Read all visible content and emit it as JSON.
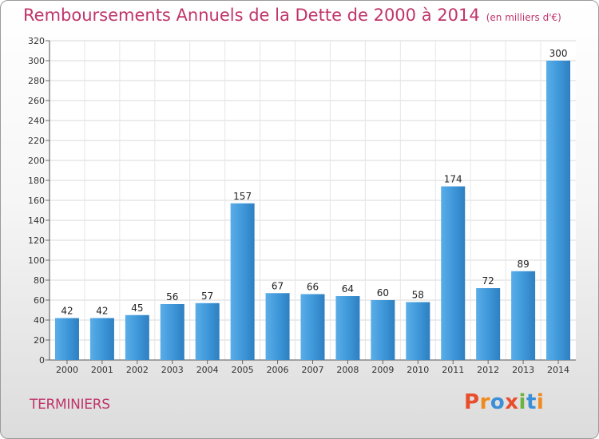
{
  "chart_data": {
    "type": "bar",
    "title": "Remboursements Annuels de la Dette de 2000 à 2014",
    "subtitle": "(en milliers d'€)",
    "categories": [
      "2000",
      "2001",
      "2002",
      "2003",
      "2004",
      "2005",
      "2006",
      "2007",
      "2008",
      "2009",
      "2010",
      "2011",
      "2012",
      "2013",
      "2014"
    ],
    "values": [
      42,
      42,
      45,
      56,
      57,
      157,
      67,
      66,
      64,
      60,
      58,
      174,
      72,
      89,
      300
    ],
    "ylim": [
      0,
      320
    ],
    "yticks": [
      0,
      20,
      40,
      60,
      80,
      100,
      120,
      140,
      160,
      180,
      200,
      220,
      240,
      260,
      280,
      300,
      320
    ],
    "grid": true,
    "bar_color": "#3d96d8"
  },
  "commune": "TERMINIERS",
  "logo": {
    "text": "Proxiti",
    "colors": [
      "#e84e2b",
      "#f08a1c",
      "#3b8fd6",
      "#e84e2b",
      "#6db33f",
      "#3b8fd6",
      "#f08a1c"
    ]
  }
}
